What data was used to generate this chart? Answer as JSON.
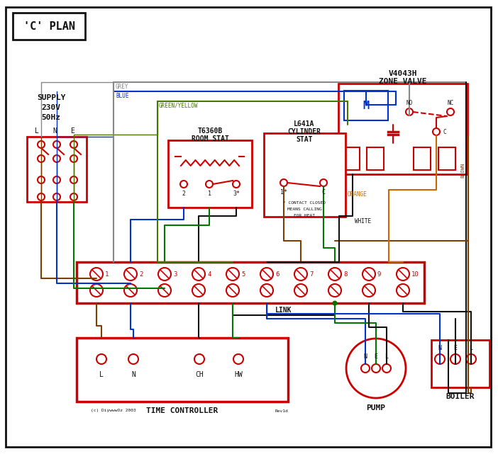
{
  "bg": "#ffffff",
  "RED": "#cc0000",
  "BLUE": "#0033cc",
  "GREEN": "#007700",
  "BROWN": "#7b3f00",
  "GREY": "#888888",
  "ORANGE": "#cc6600",
  "BLACK": "#111111",
  "GY": "#447700",
  "title": "'C' PLAN",
  "supply_lines": [
    "SUPPLY",
    "230V",
    "50Hz"
  ],
  "lne": [
    "L",
    "N",
    "E"
  ],
  "zone_valve_title": [
    "V4043H",
    "ZONE VALVE"
  ],
  "room_stat_title": [
    "T6360B",
    "ROOM STAT"
  ],
  "cyl_stat_title": [
    "L641A",
    "CYLINDER",
    "STAT"
  ],
  "cyl_note": [
    "* CONTACT CLOSED",
    "MEANS CALLING",
    "FOR HEAT"
  ],
  "time_ctrl": "TIME CONTROLLER",
  "pump": "PUMP",
  "boiler": "BOILER",
  "link": "LINK",
  "terminals": [
    "1",
    "2",
    "3",
    "4",
    "5",
    "6",
    "7",
    "8",
    "9",
    "10"
  ],
  "tc_terms": [
    "L",
    "N",
    "CH",
    "HW"
  ],
  "nel": [
    "N",
    "E",
    "L"
  ],
  "copyright": "(c) DiywwwOz 2003",
  "rev": "Rev1d",
  "wire_labels": {
    "grey": "GREY",
    "blue": "BLUE",
    "gy": "GREEN/YELLOW",
    "brown": "BROWN",
    "white": "WHITE",
    "orange": "ORANGE"
  }
}
